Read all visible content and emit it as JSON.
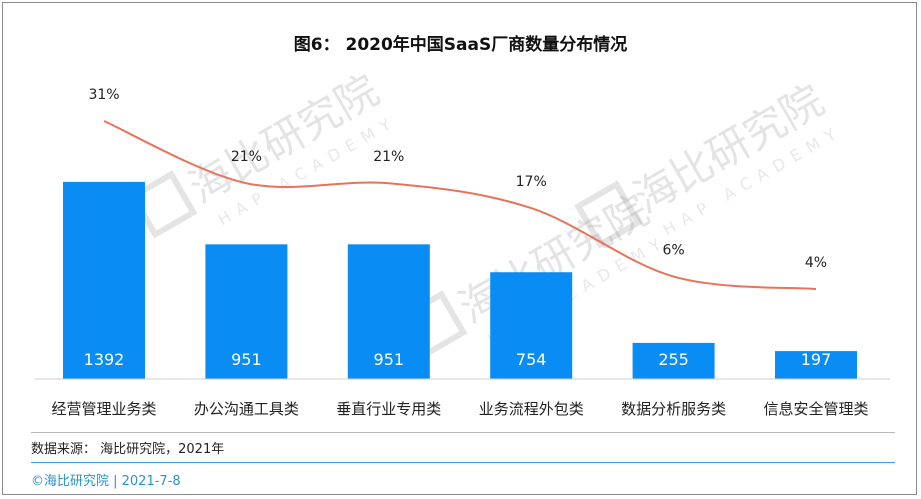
{
  "title": "图6： 2020年中国SaaS厂商数量分布情况",
  "source": "数据来源： 海比研究院，2021年",
  "footer": "©海比研究院 | 2021-7-8",
  "watermark": {
    "name": "海比研究院",
    "sub": "HAP ACADEMY"
  },
  "colors": {
    "bar": "#0a8cf5",
    "line": "#e8735a",
    "footer": "#2a93c9"
  },
  "chart_data": {
    "type": "bar",
    "categories": [
      "经营管理业务类",
      "办公沟通工具类",
      "垂直行业专用类",
      "业务流程外包类",
      "数据分析服务类",
      "信息安全管理类"
    ],
    "series": [
      {
        "type": "bar",
        "values": [
          1392,
          951,
          951,
          754,
          255,
          197
        ],
        "labels": [
          "1392",
          "951",
          "951",
          "754",
          "255",
          "197"
        ]
      },
      {
        "type": "line",
        "values": [
          31,
          21,
          21,
          17,
          6,
          4
        ],
        "labels": [
          "31%",
          "21%",
          "21%",
          "17%",
          "6%",
          "4%"
        ]
      }
    ],
    "ylim": [
      0,
      1400
    ],
    "percent_lim": [
      0,
      32
    ],
    "grid": false,
    "legend": "none"
  }
}
